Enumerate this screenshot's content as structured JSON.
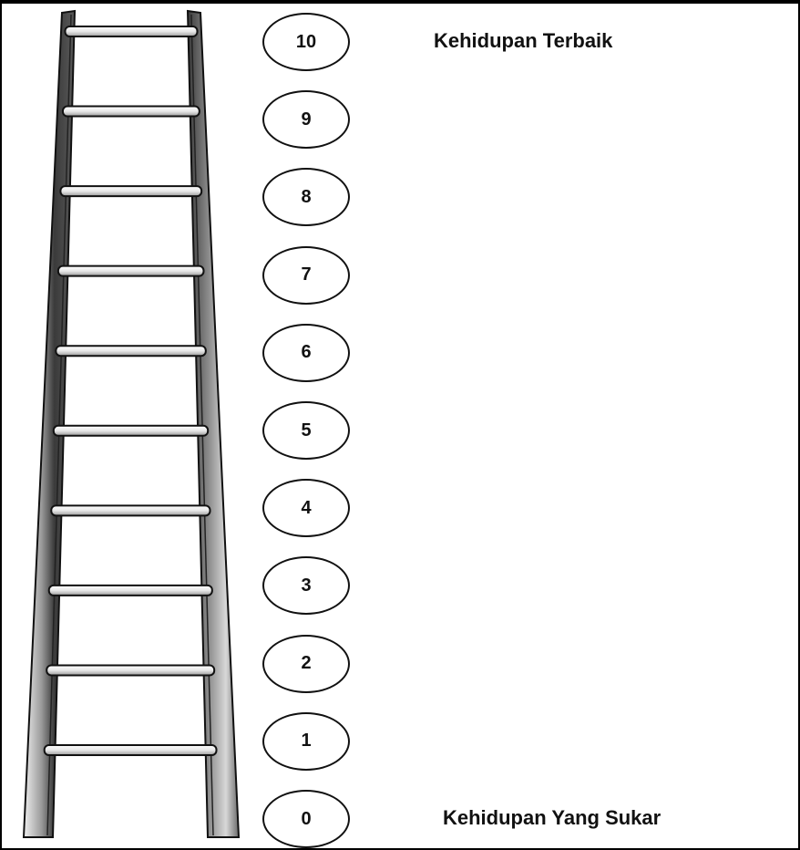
{
  "scale": {
    "steps": [
      "10",
      "9",
      "8",
      "7",
      "6",
      "5",
      "4",
      "3",
      "2",
      "1",
      "0"
    ]
  },
  "labels": {
    "top": "Kehidupan Terbaik",
    "bottom": "Kehidupan Yang Sukar"
  },
  "colors": {
    "ink": "#111111",
    "rail_dark": "#4a4a4a",
    "rail_light": "#e6e6e6",
    "rung": "#f2f2f2"
  },
  "ladder": {
    "rungs": 10
  }
}
